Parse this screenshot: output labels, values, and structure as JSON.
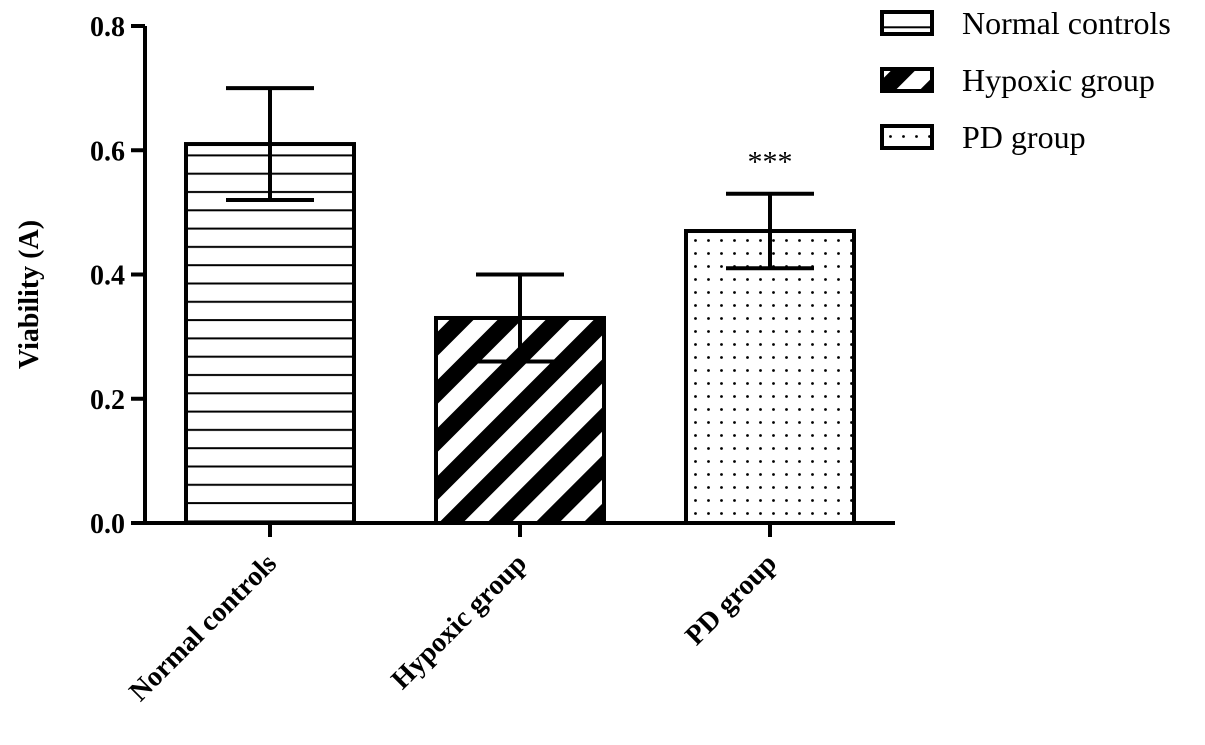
{
  "chart_data": {
    "type": "bar",
    "categories": [
      "Normal controls",
      "Hypoxic group",
      "PD group"
    ],
    "values": [
      0.61,
      0.33,
      0.47
    ],
    "errors": [
      0.09,
      0.07,
      0.06
    ],
    "patterns": [
      "horizontal-lines",
      "diagonal-stripes",
      "dots"
    ],
    "title": "",
    "xlabel": "",
    "ylabel": "Viability (A)",
    "ylim": [
      0,
      0.8
    ],
    "yticks": [
      0.0,
      0.2,
      0.4,
      0.6,
      0.8
    ],
    "ytick_labels": [
      "0.0",
      "0.2",
      "0.4",
      "0.6",
      "0.8"
    ],
    "legend": {
      "placement": "top-right",
      "entries": [
        "Normal controls",
        "Hypoxic group",
        "PD group"
      ]
    },
    "annotations": [
      {
        "category": "PD group",
        "text": "***"
      }
    ],
    "grid": false
  }
}
